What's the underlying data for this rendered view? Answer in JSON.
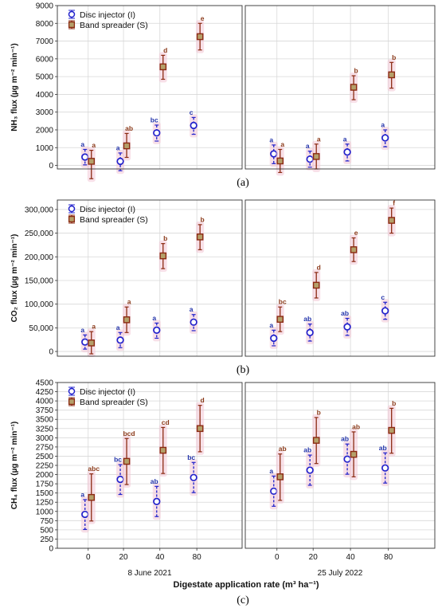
{
  "colors": {
    "disc": "#2222cc",
    "band": "#8b2a12",
    "band_fill": "#b5a06a",
    "letter_disc": "#2233aa",
    "letter_band": "#8b3a1a",
    "grid": "#d8d8d8",
    "halo": "#f2c6d6"
  },
  "legend": {
    "disc_label": "Disc injector (I)",
    "band_label": "Band spreader (S)"
  },
  "x_categories": [
    "0",
    "20",
    "40",
    "80"
  ],
  "dates": [
    "8 June 2021",
    "25 July 2022"
  ],
  "x_axis_label": "Digestate application rate (m³ ha⁻¹)",
  "chart_data": [
    {
      "type": "scatter",
      "panel_label": "(a)",
      "ylabel": "NH₃ flux (µg m⁻² min⁻¹)",
      "ylim": [
        -200,
        9000
      ],
      "y_ticks": [
        0,
        1000,
        2000,
        3000,
        4000,
        5000,
        6000,
        7000,
        8000,
        9000
      ],
      "y_tick_labels": [
        "0",
        "1000",
        "2000",
        "3000",
        "4000",
        "5000",
        "6000",
        "7000",
        "8000",
        "9000"
      ],
      "categories": [
        "0",
        "20",
        "40",
        "80"
      ],
      "grid": true,
      "legend_position": "top-left",
      "series": [
        {
          "name": "Disc injector (I)",
          "groups": [
            {
              "values": [
                470,
                230,
                1830,
                2250
              ],
              "low": [
                30,
                -300,
                1370,
                1750
              ],
              "high": [
                900,
                700,
                2270,
                2700
              ],
              "letters": [
                "a",
                "a",
                "bc",
                "c"
              ]
            },
            {
              "values": [
                650,
                350,
                750,
                1550
              ],
              "low": [
                100,
                -100,
                250,
                1050
              ],
              "high": [
                1150,
                800,
                1200,
                2000
              ],
              "letters": [
                "a",
                "a",
                "a",
                "a"
              ]
            }
          ]
        },
        {
          "name": "Band spreader (S)",
          "groups": [
            {
              "values": [
                230,
                1100,
                5550,
                7250
              ],
              "low": [
                -750,
                450,
                4850,
                6500
              ],
              "high": [
                850,
                1800,
                6200,
                8000
              ],
              "letters": [
                "a",
                "ab",
                "d",
                "e"
              ]
            },
            {
              "values": [
                250,
                500,
                4400,
                5100
              ],
              "low": [
                -400,
                -200,
                3700,
                4350
              ],
              "high": [
                900,
                1200,
                5050,
                5800
              ],
              "letters": [
                "a",
                "a",
                "b",
                "b"
              ]
            }
          ]
        }
      ]
    },
    {
      "type": "scatter",
      "panel_label": "(b)",
      "ylabel": "CO₂ flux (µg m⁻² min⁻¹)",
      "ylim": [
        -10000,
        320000
      ],
      "y_ticks": [
        0,
        50000,
        100000,
        150000,
        200000,
        250000,
        300000
      ],
      "y_tick_labels": [
        "0",
        "50,000",
        "100,000",
        "150,000",
        "200,000",
        "250,000",
        "300,000"
      ],
      "categories": [
        "0",
        "20",
        "40",
        "80"
      ],
      "grid": true,
      "legend_position": "top-left",
      "series": [
        {
          "name": "Disc injector (I)",
          "groups": [
            {
              "values": [
                20000,
                24000,
                45000,
                62000
              ],
              "low": [
                5000,
                8000,
                28000,
                44000
              ],
              "high": [
                35000,
                40000,
                60000,
                78000
              ],
              "letters": [
                "a",
                "a",
                "a",
                "a"
              ]
            },
            {
              "values": [
                28000,
                40000,
                52000,
                86000
              ],
              "low": [
                12000,
                22000,
                34000,
                68000
              ],
              "high": [
                45000,
                58000,
                70000,
                104000
              ],
              "letters": [
                "a",
                "ab",
                "ab",
                "c"
              ]
            }
          ]
        },
        {
          "name": "Band spreader (S)",
          "groups": [
            {
              "values": [
                18000,
                67000,
                202000,
                242000
              ],
              "low": [
                -5000,
                40000,
                175000,
                215000
              ],
              "high": [
                42000,
                94000,
                228000,
                268000
              ],
              "letters": [
                "a",
                "a",
                "b",
                "b"
              ]
            },
            {
              "values": [
                68000,
                140000,
                215000,
                277000
              ],
              "low": [
                42000,
                113000,
                190000,
                250000
              ],
              "high": [
                94000,
                167000,
                240000,
                303000
              ],
              "letters": [
                "bc",
                "d",
                "e",
                "f"
              ]
            }
          ]
        }
      ]
    },
    {
      "type": "scatter",
      "panel_label": "(c)",
      "ylabel": "CH₄ flux (µg m⁻² min⁻¹)",
      "ylim": [
        0,
        4500
      ],
      "y_ticks": [
        0,
        250,
        500,
        750,
        1000,
        1250,
        1500,
        1750,
        2000,
        2250,
        2500,
        2750,
        3000,
        3250,
        3500,
        3750,
        4000,
        4250,
        4500
      ],
      "y_tick_labels": [
        "0",
        "250",
        "500",
        "750",
        "1000",
        "1250",
        "1500",
        "1750",
        "2000",
        "2250",
        "2500",
        "2750",
        "3000",
        "3250",
        "3500",
        "3750",
        "4000",
        "4250",
        "4500"
      ],
      "categories": [
        "0",
        "20",
        "40",
        "80"
      ],
      "grid": true,
      "legend_position": "top-left",
      "series": [
        {
          "name": "Disc injector (I)",
          "groups": [
            {
              "values": [
                920,
                1870,
                1270,
                1920
              ],
              "low": [
                510,
                1460,
                860,
                1510
              ],
              "high": [
                1320,
                2270,
                1680,
                2330
              ],
              "letters": [
                "a",
                "bc",
                "ab",
                "bc"
              ]
            },
            {
              "values": [
                1550,
                2120,
                2420,
                2180
              ],
              "low": [
                1140,
                1710,
                2010,
                1770
              ],
              "high": [
                1960,
                2530,
                2830,
                2590
              ],
              "letters": [
                "a",
                "ab",
                "ab",
                "ab"
              ]
            }
          ]
        },
        {
          "name": "Band spreader (S)",
          "groups": [
            {
              "values": [
                1380,
                2360,
                2660,
                3250
              ],
              "low": [
                740,
                1730,
                2030,
                2620
              ],
              "high": [
                2020,
                2980,
                3280,
                3880
              ],
              "letters": [
                "abc",
                "bcd",
                "cd",
                "d"
              ]
            },
            {
              "values": [
                1940,
                2930,
                2550,
                3200
              ],
              "low": [
                1300,
                2300,
                1940,
                2580
              ],
              "high": [
                2560,
                3550,
                3160,
                3800
              ],
              "letters": [
                "ab",
                "b",
                "ab",
                "b"
              ]
            }
          ]
        }
      ]
    }
  ]
}
